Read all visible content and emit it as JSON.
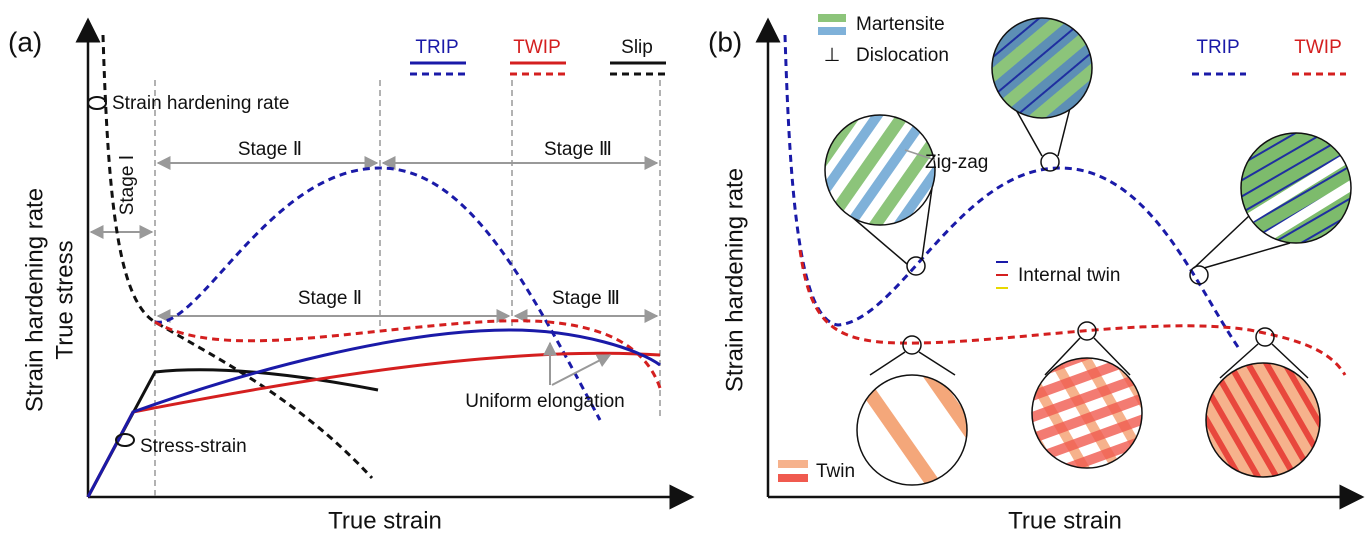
{
  "panel_a": {
    "label": "(a)",
    "y_label_1": "Strain hardening rate",
    "y_label_2": "True stress",
    "x_label": "True strain",
    "legend": [
      "TRIP",
      "TWIP",
      "Slip"
    ],
    "hardening_note": "Strain hardening rate",
    "stress_note": "Stress-strain",
    "stage_1": "Stage Ⅰ",
    "stage_2_upper": "Stage Ⅱ",
    "stage_3_upper": "Stage Ⅲ",
    "stage_2_lower": "Stage Ⅱ",
    "stage_3_lower": "Stage Ⅲ",
    "uniform": "Uniform elongation"
  },
  "panel_b": {
    "label": "(b)",
    "y_label": "Strain hardening rate",
    "x_label": "True strain",
    "legend": [
      "TRIP",
      "TWIP"
    ],
    "martensite": "Martensite",
    "dislocation_symbol": "⊥",
    "dislocation": "Dislocation",
    "zigzag": "Zig-zag",
    "internal_twin": "Internal twin",
    "twin": "Twin"
  }
}
